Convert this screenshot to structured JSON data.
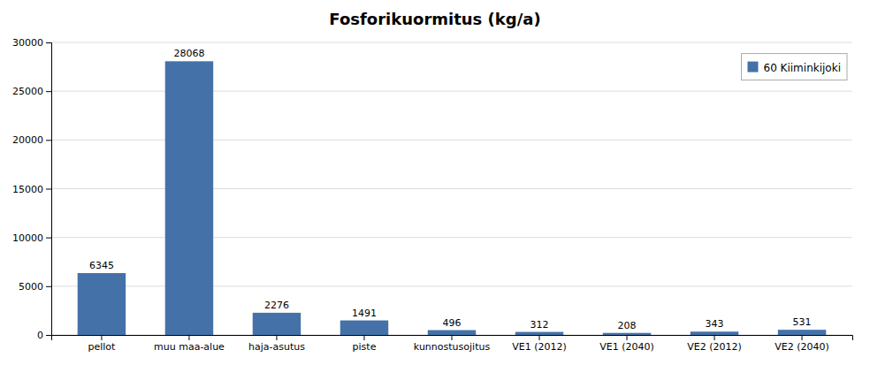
{
  "chart_data": {
    "type": "bar",
    "title": "Fosforikuormitus (kg/a)",
    "categories": [
      "pellot",
      "muu maa-alue",
      "haja-asutus",
      "piste",
      "kunnostusojitus",
      "VE1 (2012)",
      "VE1 (2040)",
      "VE2 (2012)",
      "VE2 (2040)"
    ],
    "series": [
      {
        "name": "60 Kiiminkijoki",
        "color": "#4472a8",
        "values": [
          6345,
          28068,
          2276,
          1491,
          496,
          312,
          208,
          343,
          531
        ]
      }
    ],
    "ylim": [
      0,
      30000
    ],
    "yticks": [
      0,
      5000,
      10000,
      15000,
      20000,
      25000,
      30000
    ],
    "grid": true,
    "legend": "top-right",
    "data_labels": true
  }
}
